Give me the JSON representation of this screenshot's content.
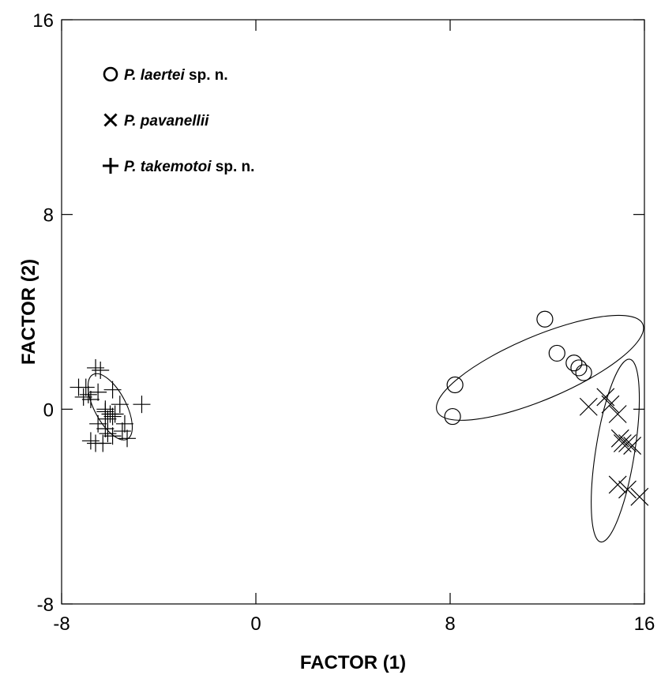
{
  "chart_data": {
    "type": "scatter",
    "title": "",
    "xlabel": "FACTOR (1)",
    "ylabel": "FACTOR (2)",
    "xlim": [
      -8,
      16
    ],
    "ylim": [
      -8,
      16
    ],
    "xticks": [
      -8,
      0,
      8,
      16
    ],
    "yticks": [
      -8,
      0,
      8,
      16
    ],
    "xtick_labels": [
      "-8",
      "0",
      "8",
      "16"
    ],
    "ytick_labels": [
      "-8",
      "0",
      "8",
      "16"
    ],
    "grid": false,
    "legend_position": "top-left",
    "series": [
      {
        "name": "P. laertei sp. n.",
        "legend_italic": "P. laertei",
        "legend_suffix": " sp. n.",
        "marker": "circle",
        "points": [
          [
            8.2,
            1.0
          ],
          [
            8.1,
            -0.3
          ],
          [
            11.9,
            3.7
          ],
          [
            12.4,
            2.3
          ],
          [
            13.1,
            1.9
          ],
          [
            13.3,
            1.7
          ],
          [
            13.5,
            1.5
          ]
        ],
        "ellipse": {
          "cx": 11.7,
          "cy": 1.7,
          "rx": 4.6,
          "ry": 1.3,
          "angle_deg": 23
        }
      },
      {
        "name": "P. pavanellii",
        "legend_italic": "P. pavanellii",
        "legend_suffix": "",
        "marker": "x",
        "points": [
          [
            13.7,
            0.1
          ],
          [
            14.4,
            0.5
          ],
          [
            14.6,
            0.2
          ],
          [
            14.9,
            -0.2
          ],
          [
            15.0,
            -1.2
          ],
          [
            15.1,
            -1.4
          ],
          [
            15.3,
            -1.4
          ],
          [
            15.5,
            -1.5
          ],
          [
            14.9,
            -3.1
          ],
          [
            15.3,
            -3.3
          ],
          [
            15.8,
            -3.6
          ]
        ],
        "ellipse": {
          "cx": 14.8,
          "cy": -1.7,
          "rx": 0.8,
          "ry": 3.8,
          "angle_deg": -9
        }
      },
      {
        "name": "P. takemotoi sp. n.",
        "legend_italic": "P. takemotoi",
        "legend_suffix": " sp. n.",
        "marker": "plus",
        "points": [
          [
            -6.6,
            1.7
          ],
          [
            -6.4,
            1.6
          ],
          [
            -7.3,
            0.9
          ],
          [
            -7.0,
            0.9
          ],
          [
            -6.9,
            0.6
          ],
          [
            -7.1,
            0.5
          ],
          [
            -6.8,
            0.4
          ],
          [
            -6.5,
            0.7
          ],
          [
            -5.9,
            0.8
          ],
          [
            -5.6,
            0.2
          ],
          [
            -4.7,
            0.2
          ],
          [
            -6.2,
            0.0
          ],
          [
            -6.0,
            -0.2
          ],
          [
            -5.9,
            -0.3
          ],
          [
            -5.8,
            -0.2
          ],
          [
            -6.1,
            -0.4
          ],
          [
            -6.5,
            -0.6
          ],
          [
            -6.2,
            -0.8
          ],
          [
            -5.5,
            -0.9
          ],
          [
            -6.1,
            -1.0
          ],
          [
            -5.9,
            -1.1
          ],
          [
            -5.3,
            -1.2
          ],
          [
            -6.8,
            -1.3
          ],
          [
            -6.3,
            -1.4
          ],
          [
            -6.6,
            -1.4
          ],
          [
            -6.2,
            -0.1
          ],
          [
            -5.4,
            -0.6
          ]
        ],
        "ellipse": {
          "cx": -6.0,
          "cy": 0.1,
          "rx": 0.65,
          "ry": 1.5,
          "angle_deg": 28
        }
      }
    ]
  }
}
